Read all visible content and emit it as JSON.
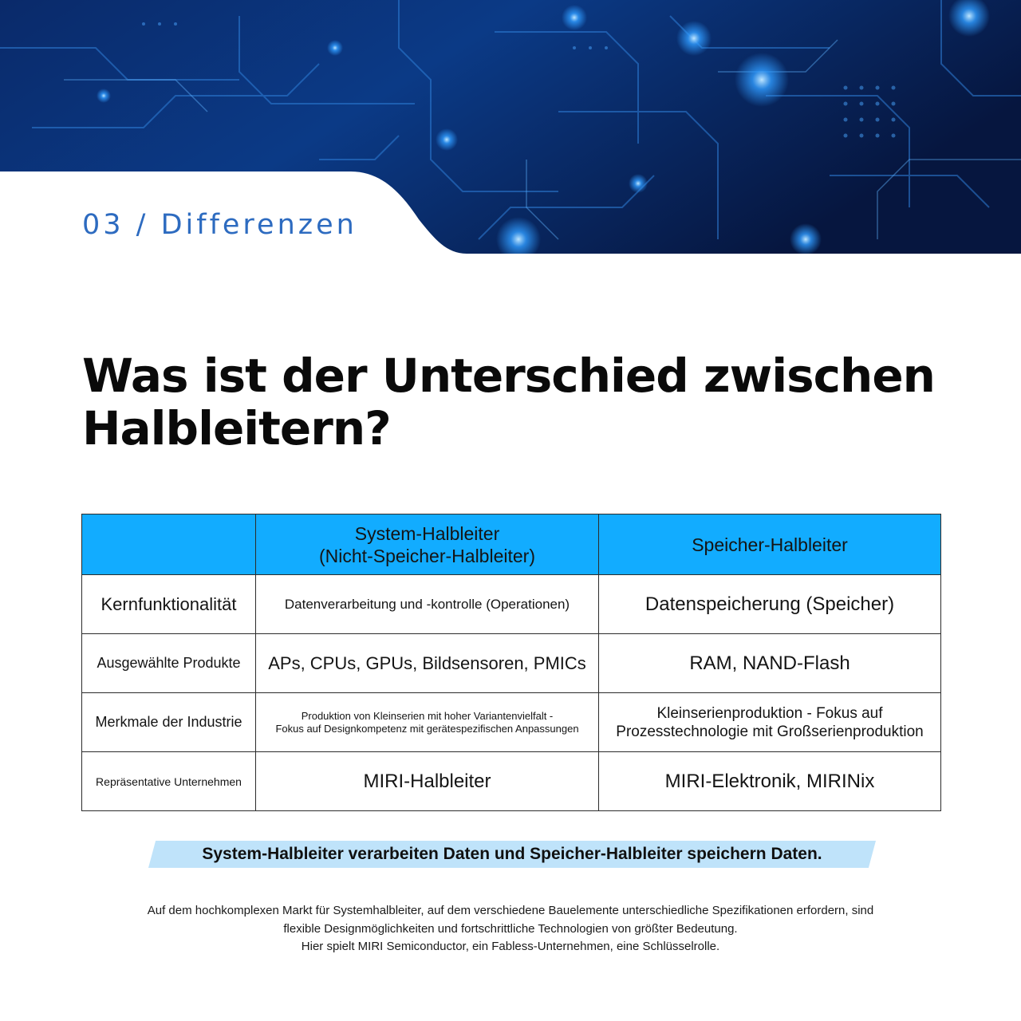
{
  "banner": {
    "section_label": "03 / Differenzen",
    "colors": {
      "deep": "#06163f",
      "mid": "#0b3a86",
      "glow": "#2f9bff"
    }
  },
  "headline": {
    "line1": "Was ist der Unterschied zwischen",
    "line2": "Halbleitern?"
  },
  "table": {
    "header_color": "#12acff",
    "headers": {
      "corner": "",
      "system_line1": "System-Halbleiter",
      "system_line2": "(Nicht-Speicher-Halbleiter)",
      "memory": "Speicher-Halbleiter"
    },
    "rows": [
      {
        "label": "Kernfunktionalität",
        "system": [
          "Datenverarbeitung und -kontrolle (Operationen)"
        ],
        "memory": [
          "Datenspeicherung (Speicher)"
        ]
      },
      {
        "label": "Ausgewählte Produkte",
        "system": [
          "APs, CPUs, GPUs, Bildsensoren, PMICs"
        ],
        "memory": [
          "RAM, NAND-Flash"
        ]
      },
      {
        "label": "Merkmale der Industrie",
        "system": [
          "Produktion von Kleinserien mit hoher Variantenvielfalt -",
          "Fokus auf Designkompetenz mit gerätespezifischen Anpassungen"
        ],
        "memory": [
          "Kleinserienproduktion - Fokus auf",
          "Prozesstechnologie mit Großserienproduktion"
        ]
      },
      {
        "label": "Repräsentative Unternehmen",
        "system": [
          "MIRI-Halbleiter"
        ],
        "memory": [
          "MIRI-Elektronik, MIRINix"
        ]
      }
    ]
  },
  "highlight": {
    "text": "System-Halbleiter verarbeiten Daten und Speicher-Halbleiter speichern Daten.",
    "color": "#bfe3fa"
  },
  "body": {
    "line1": "Auf dem hochkomplexen Markt für Systemhalbleiter, auf dem verschiedene Bauelemente unterschiedliche Spezifikationen erfordern, sind",
    "line2": "flexible Designmöglichkeiten und fortschrittliche Technologien von größter Bedeutung.",
    "line3": "Hier spielt MIRI Semiconductor, ein Fabless-Unternehmen, eine Schlüsselrolle."
  }
}
